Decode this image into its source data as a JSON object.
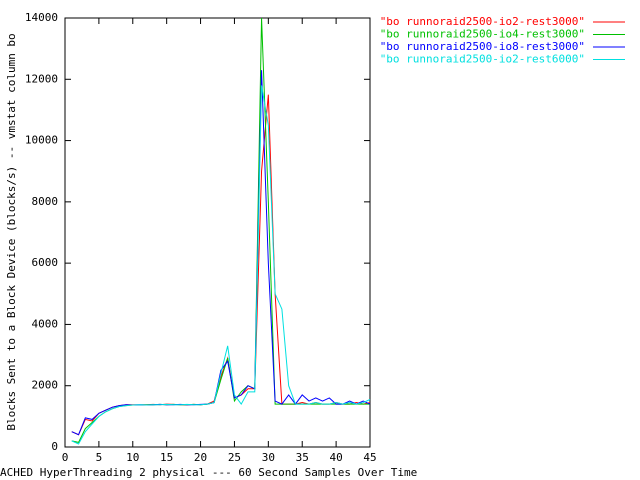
{
  "chart_data": {
    "type": "line",
    "xlabel": "ACHED HyperThreading 2 physical --- 60 Second Samples Over Time",
    "ylabel": "Blocks Sent to a Block Device (blocks/s) -- vmstat column bo",
    "x": [
      1,
      2,
      3,
      4,
      5,
      6,
      7,
      8,
      9,
      10,
      11,
      12,
      13,
      14,
      15,
      16,
      17,
      18,
      19,
      20,
      21,
      22,
      23,
      24,
      25,
      26,
      27,
      28,
      29,
      30,
      31,
      32,
      33,
      34,
      35,
      36,
      37,
      38,
      39,
      40,
      41,
      42,
      43,
      44,
      45
    ],
    "xlim": [
      0,
      45
    ],
    "xticks": [
      0,
      5,
      10,
      15,
      20,
      25,
      30,
      35,
      40,
      45
    ],
    "ylim": [
      0,
      14000
    ],
    "yticks": [
      0,
      2000,
      4000,
      6000,
      8000,
      10000,
      12000,
      14000
    ],
    "series": [
      {
        "name": "\"bo runnoraid2500-io2-rest3000\"",
        "color": "#ff0000",
        "values": [
          500,
          400,
          900,
          850,
          1100,
          1200,
          1300,
          1350,
          1380,
          1380,
          1370,
          1380,
          1390,
          1380,
          1400,
          1390,
          1380,
          1380,
          1390,
          1380,
          1400,
          1500,
          2300,
          2900,
          1600,
          1700,
          1900,
          1900,
          9000,
          11500,
          5000,
          1400,
          1400,
          1400,
          1450,
          1400,
          1450,
          1400,
          1400,
          1450,
          1400,
          1400,
          1450,
          1400,
          1450
        ]
      },
      {
        "name": "\"bo runnoraid2500-io4-rest3000\"",
        "color": "#00c000",
        "values": [
          200,
          150,
          600,
          800,
          1000,
          1150,
          1250,
          1320,
          1350,
          1370,
          1370,
          1380,
          1380,
          1390,
          1380,
          1390,
          1380,
          1380,
          1390,
          1380,
          1400,
          1450,
          2200,
          2900,
          1500,
          1800,
          2000,
          1900,
          14000,
          8000,
          1400,
          1400,
          1400,
          1400,
          1400,
          1400,
          1400,
          1400,
          1400,
          1400,
          1400,
          1400,
          1400,
          1400,
          1400
        ]
      },
      {
        "name": "\"bo runnoraid2500-io8-rest3000\"",
        "color": "#0000ff",
        "values": [
          500,
          400,
          950,
          900,
          1100,
          1200,
          1300,
          1350,
          1380,
          1370,
          1380,
          1370,
          1380,
          1390,
          1380,
          1380,
          1390,
          1380,
          1380,
          1390,
          1400,
          1450,
          2500,
          2800,
          1600,
          1700,
          2000,
          1900,
          12300,
          6000,
          1500,
          1400,
          1700,
          1400,
          1700,
          1500,
          1600,
          1500,
          1600,
          1400,
          1400,
          1500,
          1400,
          1500,
          1400
        ]
      },
      {
        "name": "\"bo runnoraid2500-io2-rest6000\"",
        "color": "#00e0e0",
        "values": [
          200,
          100,
          500,
          750,
          1000,
          1150,
          1250,
          1320,
          1350,
          1370,
          1380,
          1370,
          1380,
          1380,
          1390,
          1380,
          1380,
          1390,
          1380,
          1380,
          1400,
          1450,
          2400,
          3300,
          1700,
          1400,
          1800,
          1800,
          11800,
          10500,
          5000,
          4500,
          2000,
          1400,
          1400,
          1400,
          1450,
          1400,
          1400,
          1450,
          1400,
          1450,
          1400,
          1450,
          1550
        ]
      }
    ],
    "legend": "top-right"
  }
}
